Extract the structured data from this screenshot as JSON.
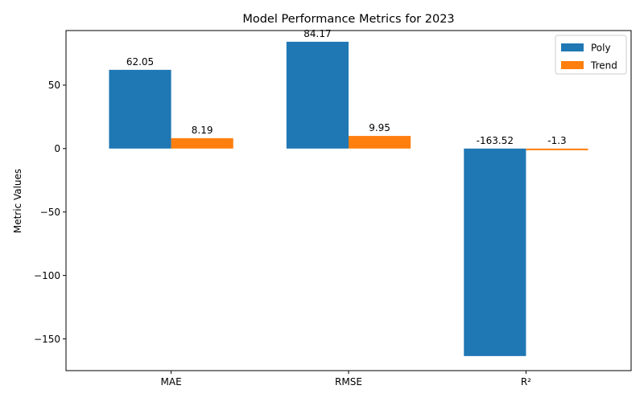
{
  "chart_data": {
    "type": "bar",
    "title": "Model Performance Metrics for 2023",
    "xlabel": "",
    "ylabel": "Metric Values",
    "categories": [
      "MAE",
      "RMSE",
      "R²"
    ],
    "series": [
      {
        "name": "Poly",
        "values": [
          62.05,
          84.17,
          -163.52
        ],
        "labels": [
          "62.05",
          "84.17",
          "-163.52"
        ],
        "color": "#1f77b4"
      },
      {
        "name": "Trend",
        "values": [
          8.19,
          9.95,
          -1.3
        ],
        "labels": [
          "8.19",
          "9.95",
          "-1.3"
        ],
        "color": "#ff7f0e"
      }
    ],
    "ylim": [
      -175,
      93
    ],
    "yticks": [
      -150,
      -100,
      -50,
      0,
      50
    ],
    "ytick_labels": [
      "−150",
      "−100",
      "−50",
      "0",
      "50"
    ],
    "grid": false,
    "legend": "top-right"
  }
}
